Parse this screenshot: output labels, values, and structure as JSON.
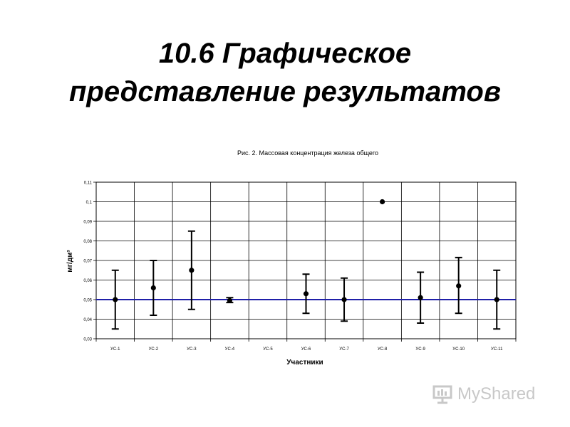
{
  "slide": {
    "title_line1": "10.6 Графическое",
    "title_line2": "представление результатов"
  },
  "watermark": {
    "text": "MyShared"
  },
  "chart_data": {
    "type": "scatter",
    "title": "Рис. 2. Массовая концентрация железа общего",
    "xlabel": "Участники",
    "ylabel": "мг/дм³",
    "categories": [
      "УС-1",
      "УС-2",
      "УС-3",
      "УС-4",
      "УС-5",
      "УС-6",
      "УС-7",
      "УС-8",
      "УС-9",
      "УС-10",
      "УС-11"
    ],
    "ylim": [
      0.03,
      0.11
    ],
    "yticks": [
      0.03,
      0.04,
      0.05,
      0.06,
      0.07,
      0.08,
      0.09,
      0.1,
      0.11
    ],
    "ytick_labels": [
      "0,03",
      "0,04",
      "0,05",
      "0,06",
      "0,07",
      "0,08",
      "0,09",
      "0,1",
      "0,11"
    ],
    "values": [
      0.05,
      0.056,
      0.065,
      0.0495,
      null,
      0.053,
      0.05,
      0.1,
      0.051,
      0.057,
      0.05
    ],
    "error_low": [
      0.035,
      0.042,
      0.045,
      0.0485,
      null,
      0.043,
      0.039,
      null,
      0.038,
      0.043,
      0.035
    ],
    "error_high": [
      0.065,
      0.07,
      0.085,
      0.051,
      null,
      0.063,
      0.061,
      null,
      0.064,
      0.0715,
      0.065
    ],
    "reference_line": 0.05,
    "grid": true,
    "colors": {
      "reference": "#1f1fa8",
      "marker": "#000000",
      "grid": "#000000"
    }
  }
}
